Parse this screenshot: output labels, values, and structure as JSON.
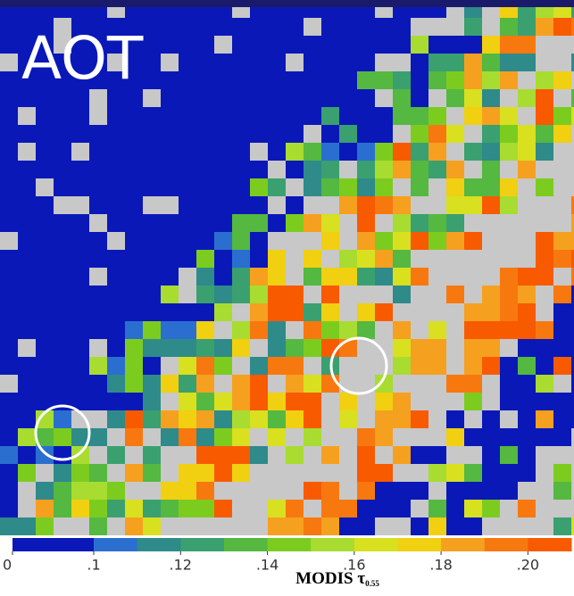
{
  "title": "AOT",
  "colorbar": {
    "label": "MODIS τ",
    "label_subscript": "0.55",
    "xlim": [
      0,
      0.21
    ],
    "xticks": [
      0,
      {
        "value": 0.1,
        "label": ".1"
      },
      {
        "value": 0.12,
        "label": ".12"
      },
      {
        "value": 0.14,
        "label": ".14"
      },
      {
        "value": 0.16,
        "label": ".16"
      },
      {
        "value": 0.18,
        "label": ".18"
      },
      {
        "value": 0.2,
        "label": ".20"
      }
    ],
    "colors": [
      "#0a18b8",
      "#2a6fd0",
      "#2f8a8a",
      "#3aa070",
      "#55b840",
      "#7ccc20",
      "#a8dc30",
      "#d8e020",
      "#f0d010",
      "#f6a020",
      "#f87810",
      "#f85a00"
    ]
  }
}
